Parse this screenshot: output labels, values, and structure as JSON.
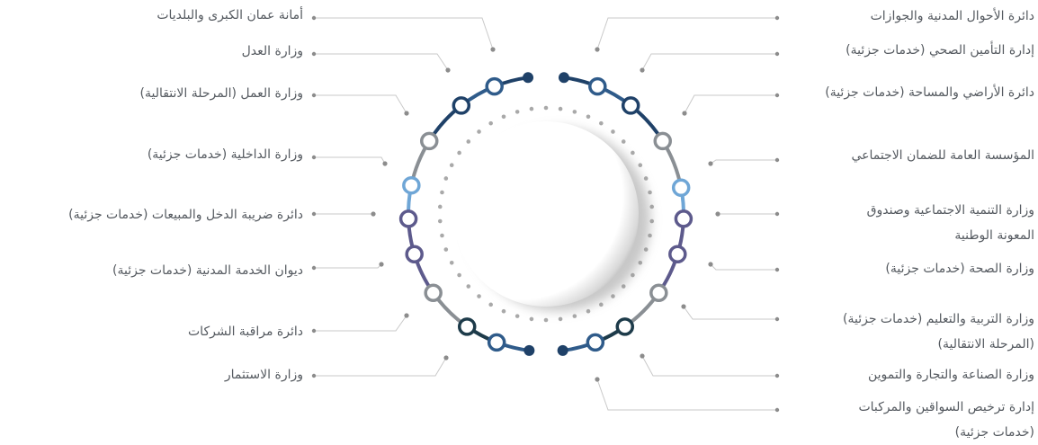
{
  "colors": {
    "dark_navy": "#1f4168",
    "mid_blue": "#2f5b8a",
    "gray": "#8a8f94",
    "light_blue": "#6fa6d6",
    "purple": "#5d5a8c",
    "dark_teal": "#1d3b4a",
    "connector": "#c9c9c9",
    "dot": "#8c8c8c",
    "text": "#555a60"
  },
  "left_labels": [
    {
      "text": "أمانة عمان الكبرى والبلديات"
    },
    {
      "text": "وزارة العدل"
    },
    {
      "text": "وزارة العمل (المرحلة الانتقالية)"
    },
    {
      "text": "وزارة الداخلية (خدمات جزئية)"
    },
    {
      "text": "دائرة ضريبة الدخل والمبيعات (خدمات جزئية)"
    },
    {
      "text": "ديوان الخدمة المدنية (خدمات جزئية)"
    },
    {
      "text": "دائرة مراقبة الشركات"
    },
    {
      "text": "وزارة الاستثمار"
    }
  ],
  "right_labels": [
    {
      "text": "دائرة الأحوال المدنية والجوازات"
    },
    {
      "text": "إدارة التأمين الصحي (خدمات جزئية)"
    },
    {
      "text": "دائرة الأراضي والمساحة (خدمات جزئية)"
    },
    {
      "text": "المؤسسة العامة للضمان الاجتماعي"
    },
    {
      "line1": "وزارة التنمية الاجتماعية وصندوق",
      "line2": "المعونة الوطنية"
    },
    {
      "text": "وزارة الصحة (خدمات جزئية)"
    },
    {
      "line1": "وزارة التربية والتعليم (خدمات جزئية)",
      "line2": "(المرحلة الانتقالية)"
    },
    {
      "text": "وزارة الصناعة والتجارة والتموين"
    },
    {
      "line1": "إدارة ترخيص السواقين والمركبات",
      "line2": "(خدمات جزئية)"
    }
  ]
}
